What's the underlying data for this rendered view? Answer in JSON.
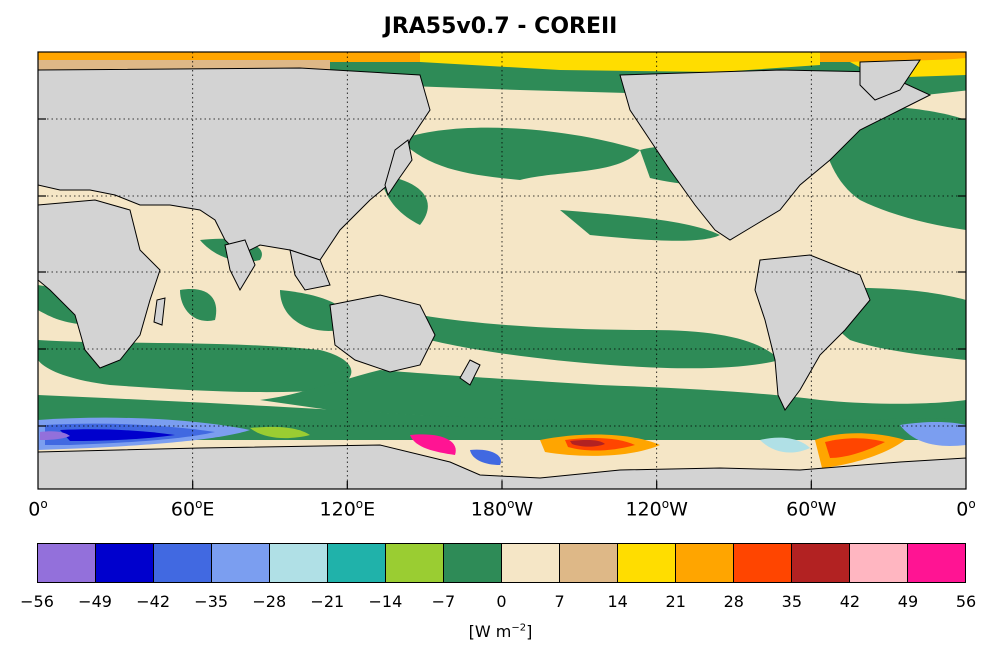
{
  "title": "JRA55v0.7 - COREII",
  "map": {
    "x_tick_labels": [
      {
        "deg": "0",
        "dir": ""
      },
      {
        "deg": "60",
        "dir": "E"
      },
      {
        "deg": "120",
        "dir": "E"
      },
      {
        "deg": "180",
        "dir": "W"
      },
      {
        "deg": "120",
        "dir": "W"
      },
      {
        "deg": "60",
        "dir": "W"
      },
      {
        "deg": "0",
        "dir": ""
      }
    ],
    "degree_symbol": "o",
    "colors": {
      "land": "#d3d3d3",
      "ocean_0_7": "#f5e6c6",
      "ocean_m7_0": "#2e8b57",
      "sea_ice_white": "#ffffff"
    }
  },
  "colorbar": {
    "colors": [
      "#9370db",
      "#0000cd",
      "#4169e1",
      "#7b9ef0",
      "#b0e0e6",
      "#20b2aa",
      "#9acd32",
      "#2e8b57",
      "#f5e6c6",
      "#deb887",
      "#ffdd00",
      "#ffa500",
      "#ff4500",
      "#b22222",
      "#ffb6c1",
      "#ff1493"
    ],
    "ticks": [
      "−56",
      "−49",
      "−42",
      "−35",
      "−28",
      "−21",
      "−14",
      "−7",
      "0",
      "7",
      "14",
      "21",
      "28",
      "35",
      "42",
      "49",
      "56"
    ],
    "units_base": "[W m",
    "units_exp": "−2",
    "units_close": "]"
  }
}
